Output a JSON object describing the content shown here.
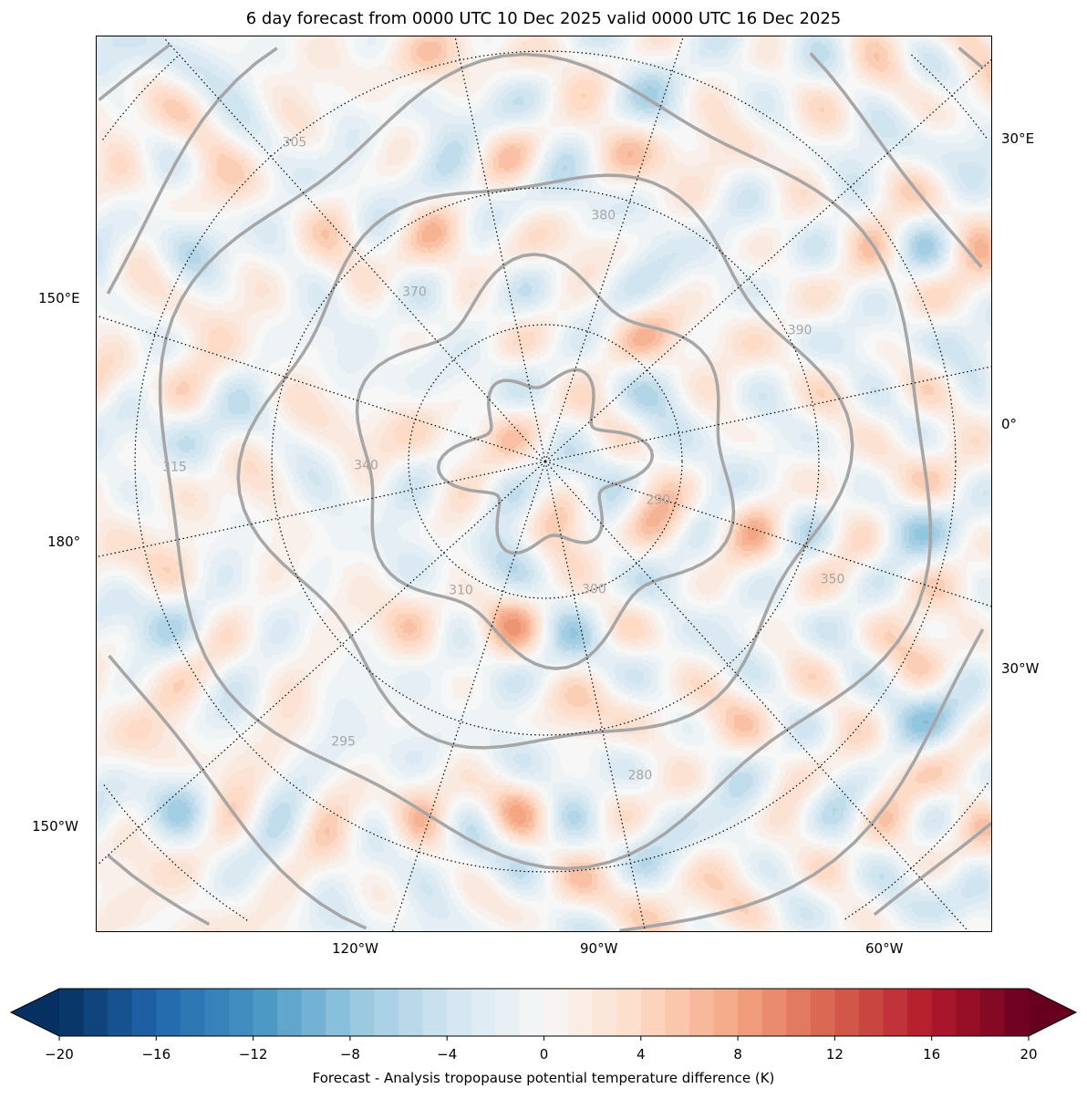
{
  "title": "6 day forecast from 0000 UTC 10 Dec 2025 valid 0000 UTC 16 Dec 2025",
  "map": {
    "projection": "north polar stereographic",
    "lon_labels_left": [
      "150°E",
      "180°",
      "150°W"
    ],
    "lon_labels_right": [
      "30°E",
      "0°",
      "30°W"
    ],
    "lon_labels_bottom": [
      "120°W",
      "90°W",
      "60°W"
    ],
    "contour_labels": [
      "290",
      "300",
      "310",
      "340",
      "370",
      "380",
      "390",
      "350",
      "280",
      "295",
      "315",
      "305"
    ]
  },
  "colorbar": {
    "label": "Forecast - Analysis tropopause potential temperature difference (K)",
    "min": -20,
    "max": 20,
    "step": 1,
    "extend": "both",
    "colormap": "RdBu_r",
    "ticks": [
      "−20",
      "−16",
      "−12",
      "−8",
      "−4",
      "0",
      "4",
      "8",
      "12",
      "16",
      "20"
    ]
  },
  "colors": {
    "contour": "#a6a6a6",
    "coast": "#404040",
    "low": "#053061",
    "high": "#67001f",
    "mid": "#f7f7f7"
  }
}
